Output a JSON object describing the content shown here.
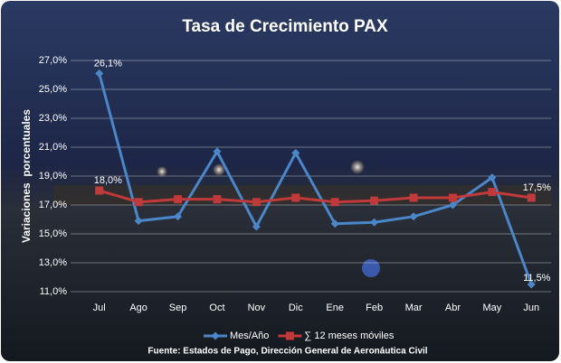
{
  "chart_data": {
    "type": "line",
    "title": "Tasa de Crecimiento PAX",
    "y_label": "Variaciones  porcentuales",
    "source": "Fuente: Estados de Pago, Dirección General de Aeronáutica Civil",
    "categories": [
      "Jul",
      "Ago",
      "Sep",
      "Oct",
      "Nov",
      "Dic",
      "Ene",
      "Feb",
      "Mar",
      "Abr",
      "May",
      "Jun"
    ],
    "series": [
      {
        "name": "Mes/Año",
        "color": "#4a86c8",
        "marker": "diamond",
        "values": [
          26.1,
          15.9,
          16.2,
          20.7,
          15.5,
          20.6,
          15.7,
          15.8,
          16.2,
          17.0,
          18.9,
          11.5
        ],
        "value_labels": [
          "26,1%",
          null,
          null,
          null,
          null,
          null,
          null,
          null,
          null,
          null,
          null,
          "11,5%"
        ]
      },
      {
        "name": "∑ 12 meses móviles",
        "color": "#c0393b",
        "marker": "square",
        "values": [
          18.0,
          17.2,
          17.4,
          17.4,
          17.2,
          17.5,
          17.2,
          17.3,
          17.5,
          17.5,
          17.9,
          17.5
        ],
        "value_labels": [
          "18,0%",
          null,
          null,
          null,
          null,
          null,
          null,
          null,
          null,
          null,
          null,
          "17,5%"
        ]
      }
    ],
    "ylim": [
      11,
      27
    ],
    "yticks": [
      {
        "value": 11,
        "label": "11,0%"
      },
      {
        "value": 13,
        "label": "13,0%"
      },
      {
        "value": 15,
        "label": "15,0%"
      },
      {
        "value": 17,
        "label": "17,0%"
      },
      {
        "value": 19,
        "label": "19,0%"
      },
      {
        "value": 21,
        "label": "21,0%"
      },
      {
        "value": 23,
        "label": "23,0%"
      },
      {
        "value": 25,
        "label": "25,0%"
      },
      {
        "value": 27,
        "label": "27,0%"
      }
    ],
    "grid": true
  }
}
